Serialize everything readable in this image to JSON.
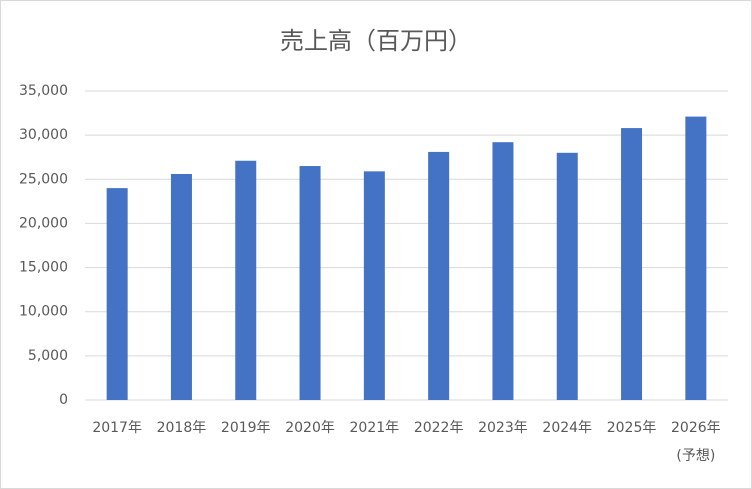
{
  "chart_data": {
    "type": "bar",
    "title": "売上高（百万円）",
    "categories": [
      "2017年",
      "2018年",
      "2019年",
      "2020年",
      "2021年",
      "2022年",
      "2023年",
      "2024年",
      "2025年",
      "2026年\n(予想)"
    ],
    "values": [
      24000,
      25600,
      27100,
      26500,
      25900,
      28100,
      29200,
      28000,
      30800,
      32100
    ],
    "color": "#4472c4",
    "ylim": [
      0,
      35000
    ],
    "yticks": [
      0,
      {
        "value": 5000,
        "label": "5,000"
      },
      {
        "value": 10000,
        "label": "10,000"
      },
      {
        "value": 15000,
        "label": "15,000"
      },
      {
        "value": 20000,
        "label": "20,000"
      },
      {
        "value": 25000,
        "label": "25,000"
      },
      {
        "value": 30000,
        "label": "30,000"
      },
      {
        "value": 35000,
        "label": "35,000"
      }
    ],
    "grid": true
  }
}
